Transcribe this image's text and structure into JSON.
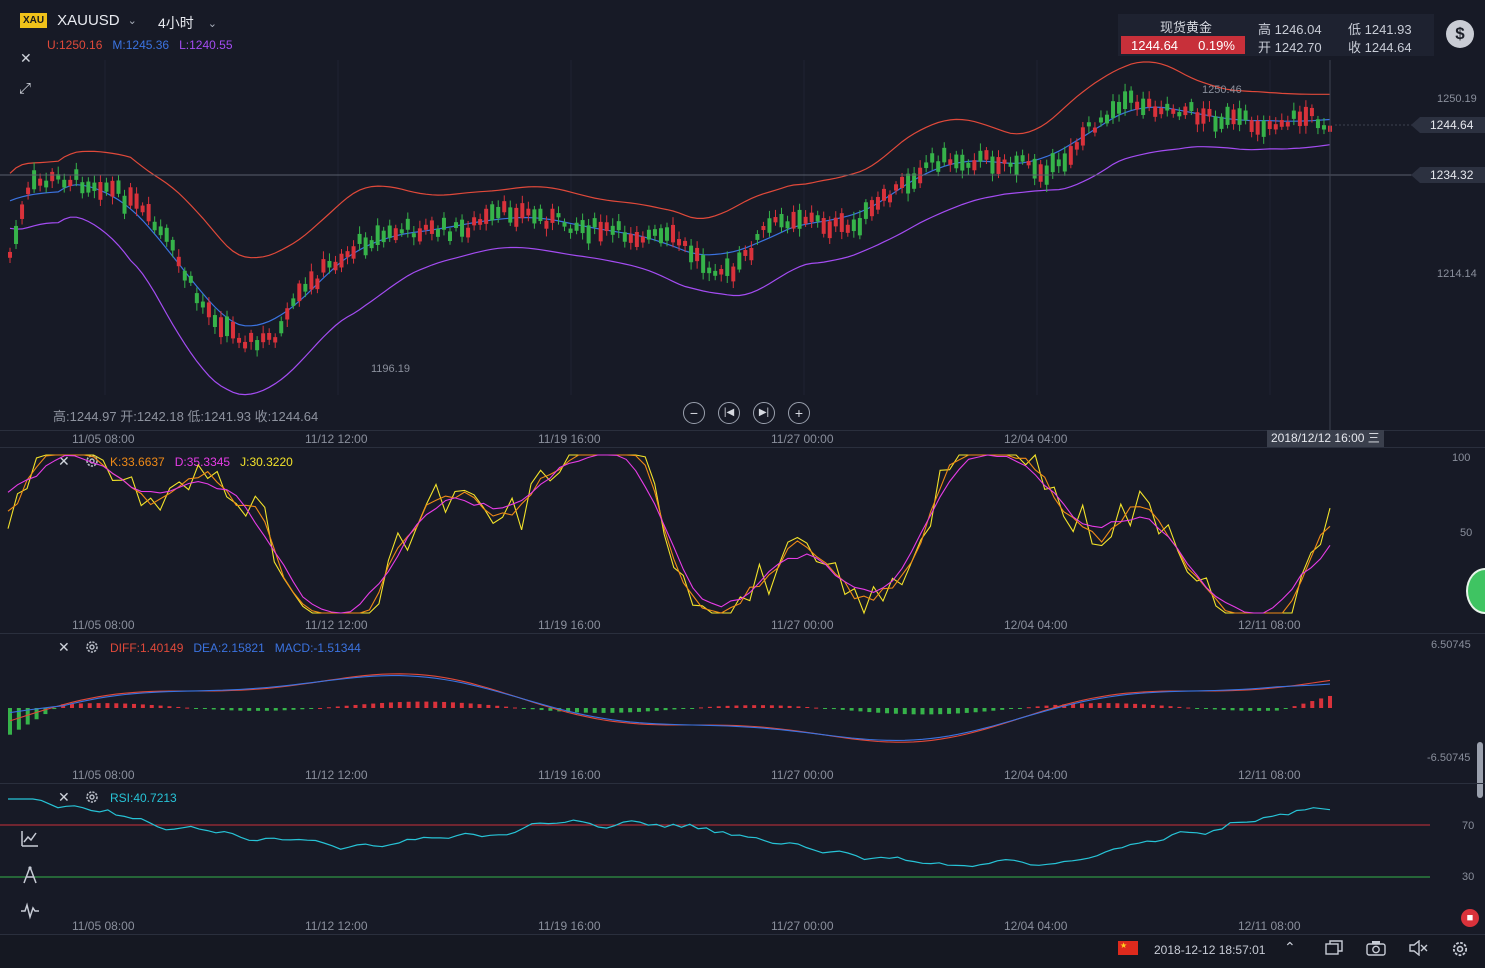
{
  "header": {
    "symbol_badge": "XAU",
    "symbol": "XAUUSD",
    "timeframe": "4小时",
    "boll_upper": "U:1250.16",
    "boll_mid": "M:1245.36",
    "boll_lower": "L:1240.55",
    "ohlc_line": "高:1244.97 开:1242.18 低:1241.93 收:1244.64"
  },
  "quote": {
    "name": "现货黄金",
    "price": "1244.64",
    "change": "0.19%",
    "high": "高 1246.04",
    "open": "开 1242.70",
    "low": "低 1241.93",
    "close": "收 1244.64"
  },
  "main_axis": {
    "labels": [
      "1250.19",
      "1214.14"
    ],
    "current_tag": "1244.64",
    "crosshair_tag": "1234.32",
    "high_mark": "1250.46",
    "low_mark": "1196.19"
  },
  "time_labels": [
    "11/05 08:00",
    "11/12 12:00",
    "11/19 16:00",
    "11/27 00:00",
    "12/04 04:00",
    "12/11 08:00"
  ],
  "crosshair_time": "2018/12/12 16:00 三",
  "kdj": {
    "k": "K:33.6637",
    "d": "D:35.3345",
    "j": "J:30.3220",
    "axis": [
      "100",
      "50"
    ]
  },
  "macd": {
    "diff": "DIFF:1.40149",
    "dea": "DEA:2.15821",
    "macd": "MACD:-1.51344",
    "axis_top": "6.50745",
    "axis_bottom": "-6.50745"
  },
  "rsi": {
    "value": "RSI:40.7213",
    "axis": [
      "70",
      "30"
    ]
  },
  "statusbar": {
    "datetime": "2018-12-12 18:57:01"
  },
  "colors": {
    "up": "#d9323b",
    "down": "#36b34a",
    "boll_upper": "#e0493a",
    "boll_mid": "#3b73e0",
    "boll_lower": "#a44cf2",
    "k": "#ef8a17",
    "d": "#e63ce6",
    "j": "#f2e22a",
    "rsi": "#27c3d6"
  }
}
